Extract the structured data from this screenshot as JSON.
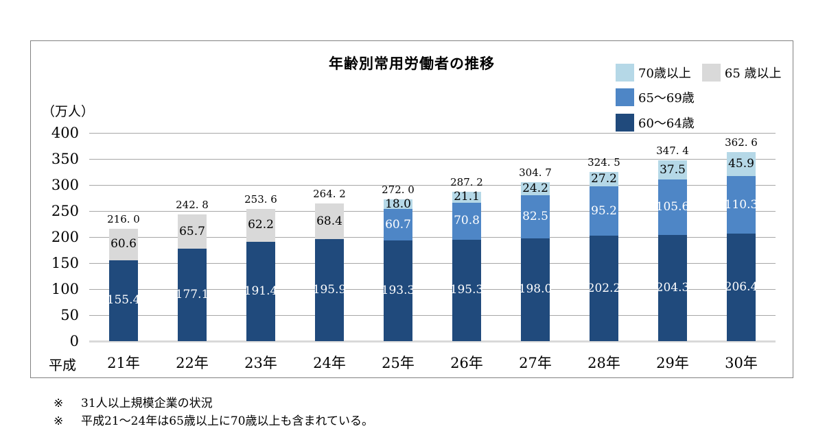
{
  "chart_data": {
    "type": "bar",
    "stacked": true,
    "title": "年齢別常用労働者の推移",
    "unit": "（万人）",
    "era_prefix": "平成",
    "categories": [
      "21年",
      "22年",
      "23年",
      "24年",
      "25年",
      "26年",
      "27年",
      "28年",
      "29年",
      "30年"
    ],
    "series": [
      {
        "key": "60-64",
        "name": "60〜64歳",
        "color": "#204a7c",
        "label_color": "#ffffff",
        "values": [
          155.4,
          177.1,
          191.4,
          195.9,
          193.3,
          195.3,
          198.0,
          202.2,
          204.3,
          206.4
        ]
      },
      {
        "key": "65-69",
        "name": "65〜69歳",
        "color": "#4e86c6",
        "label_color": "#ffffff",
        "values": [
          null,
          null,
          null,
          null,
          60.7,
          70.8,
          82.5,
          95.2,
          105.6,
          110.3
        ]
      },
      {
        "key": "70plus",
        "name": "70歳以上",
        "color": "#b5d8e7",
        "label_color": "#000000",
        "values": [
          null,
          null,
          null,
          null,
          18.0,
          21.1,
          24.2,
          27.2,
          37.5,
          45.9
        ]
      },
      {
        "key": "65plus",
        "name": "65 歳以上",
        "color": "#d9d9d9",
        "label_color": "#000000",
        "values": [
          60.6,
          65.7,
          62.2,
          68.4,
          null,
          null,
          null,
          null,
          null,
          null
        ]
      }
    ],
    "totals": [
      216.0,
      242.8,
      253.6,
      264.2,
      272.0,
      287.2,
      304.7,
      324.5,
      347.4,
      362.6
    ],
    "total_labels": [
      "216. 0",
      "242. 8",
      "253. 6",
      "264. 2",
      "272. 0",
      "287. 2",
      "304. 7",
      "324. 5",
      "347. 4",
      "362. 6"
    ],
    "ylim": [
      0,
      400
    ],
    "yticks": [
      400,
      350,
      300,
      250,
      200,
      150,
      100,
      50,
      0
    ],
    "grid": true,
    "legend_position": "top-right",
    "legend_rows": [
      [
        {
          "series": 2
        },
        {
          "series": 3
        }
      ],
      [
        {
          "series": 1
        }
      ],
      [
        {
          "series": 0
        }
      ]
    ]
  },
  "footnotes": [
    {
      "marker": "※",
      "text": "31人以上規模企業の状況"
    },
    {
      "marker": "※",
      "text": "平成21〜24年は65歳以上に70歳以上も含まれている。"
    }
  ]
}
